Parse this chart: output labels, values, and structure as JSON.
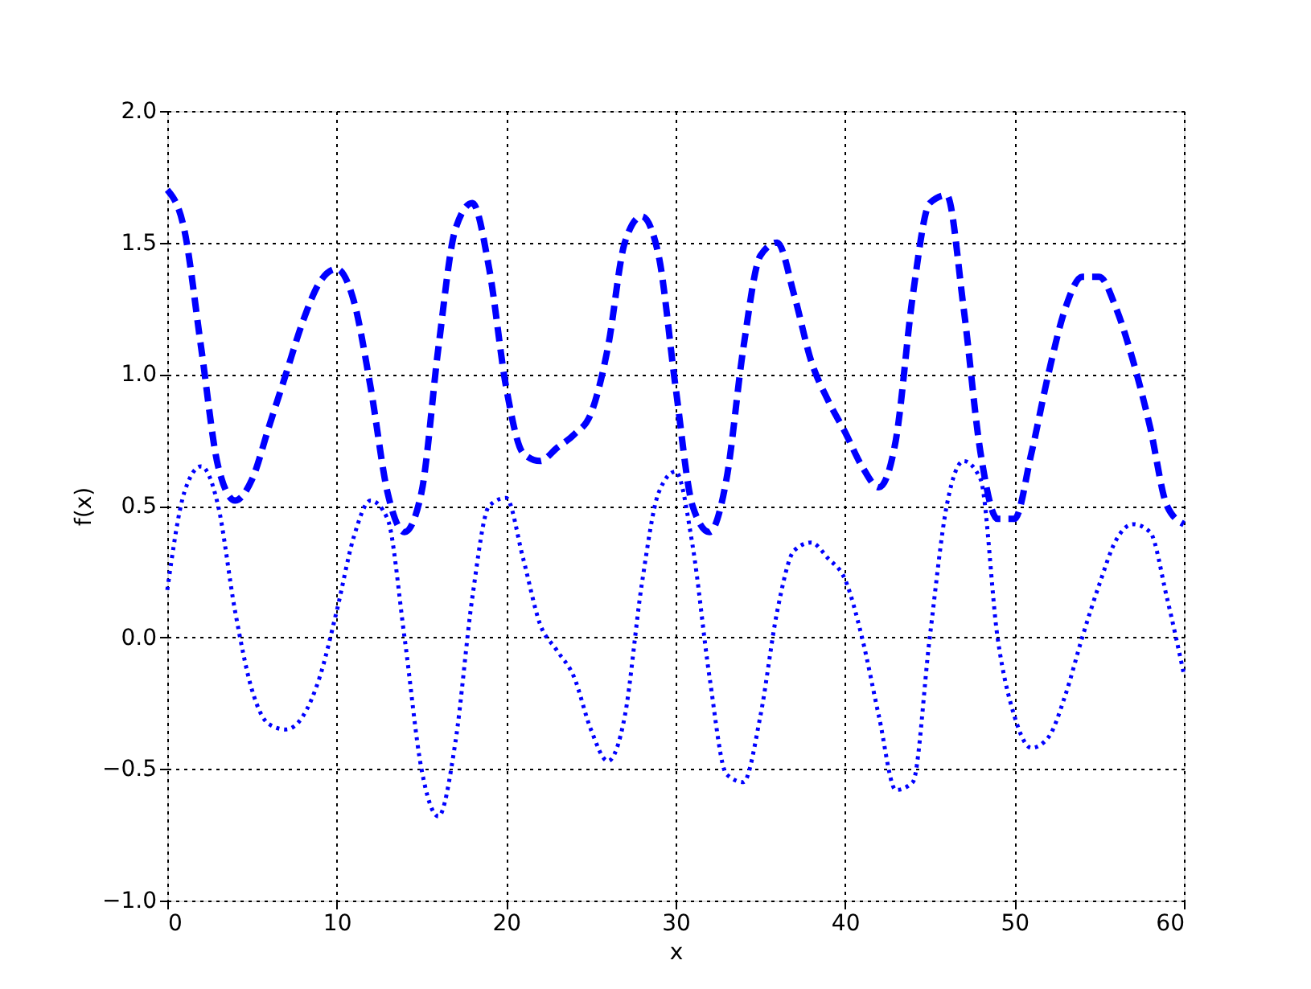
{
  "chart_data": {
    "type": "line",
    "xlabel": "x",
    "ylabel": "f(x)",
    "x": [
      0,
      1,
      2,
      3,
      4,
      5,
      6,
      7,
      8,
      9,
      10,
      11,
      12,
      13,
      14,
      15,
      16,
      17,
      18,
      19,
      20,
      21,
      22,
      23,
      24,
      25,
      26,
      27,
      28,
      29,
      30,
      31,
      32,
      33,
      34,
      35,
      36,
      37,
      38,
      39,
      40,
      41,
      42,
      43,
      44,
      45,
      46,
      47,
      48,
      49,
      50,
      51,
      52,
      53,
      54,
      55,
      56,
      57,
      58,
      59,
      60
    ],
    "series": [
      {
        "color": "#0000ff",
        "line_style": "dashed",
        "values": [
          1.7,
          1.55,
          1.1,
          0.65,
          0.52,
          0.6,
          0.8,
          1.0,
          1.2,
          1.35,
          1.4,
          1.28,
          0.95,
          0.55,
          0.4,
          0.55,
          1.1,
          1.55,
          1.65,
          1.4,
          0.95,
          0.7,
          0.67,
          0.72,
          0.77,
          0.85,
          1.1,
          1.5,
          1.6,
          1.45,
          0.95,
          0.5,
          0.4,
          0.6,
          1.1,
          1.45,
          1.5,
          1.3,
          1.05,
          0.9,
          0.78,
          0.65,
          0.57,
          0.75,
          1.3,
          1.65,
          1.68,
          1.25,
          0.7,
          0.45,
          0.45,
          0.7,
          1.0,
          1.25,
          1.37,
          1.37,
          1.25,
          1.05,
          0.8,
          0.5,
          0.43
        ]
      },
      {
        "color": "#0000ff",
        "line_style": "dotted",
        "values": [
          0.18,
          0.55,
          0.65,
          0.5,
          0.1,
          -0.2,
          -0.33,
          -0.35,
          -0.3,
          -0.15,
          0.1,
          0.38,
          0.52,
          0.45,
          0.0,
          -0.5,
          -0.68,
          -0.4,
          0.15,
          0.5,
          0.53,
          0.3,
          0.05,
          -0.05,
          -0.15,
          -0.35,
          -0.47,
          -0.3,
          0.2,
          0.55,
          0.63,
          0.35,
          -0.15,
          -0.52,
          -0.55,
          -0.3,
          0.1,
          0.33,
          0.36,
          0.3,
          0.22,
          0.0,
          -0.3,
          -0.58,
          -0.55,
          0.0,
          0.5,
          0.67,
          0.6,
          0.0,
          -0.3,
          -0.42,
          -0.38,
          -0.22,
          0.0,
          0.2,
          0.37,
          0.43,
          0.4,
          0.15,
          -0.14
        ]
      }
    ],
    "xlim": [
      0,
      60
    ],
    "xticks": [
      0,
      10,
      20,
      30,
      40,
      50,
      60
    ],
    "ylim": [
      -1.0,
      2.0
    ],
    "yticks": [
      {
        "value": -1,
        "label": "−1.0"
      },
      {
        "value": -0.5,
        "label": "−0.5"
      },
      {
        "value": 0,
        "label": "0.0"
      },
      {
        "value": 0.5,
        "label": "0.5"
      },
      {
        "value": 1,
        "label": "1.0"
      },
      {
        "value": 1.5,
        "label": "1.5"
      },
      {
        "value": 2,
        "label": "2.0"
      }
    ],
    "grid": true,
    "marker": "none"
  }
}
